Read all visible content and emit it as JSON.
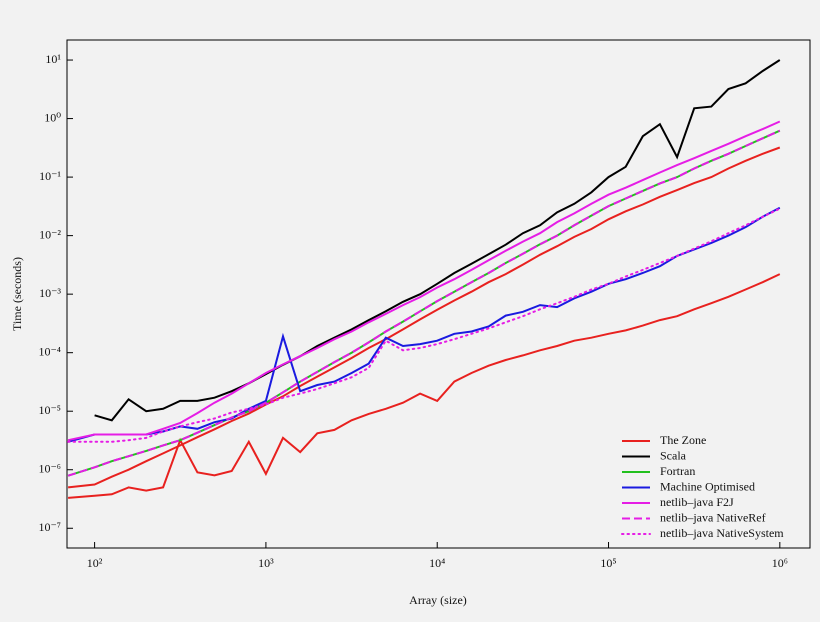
{
  "chart_data": {
    "type": "line",
    "xlabel": "Array (size)",
    "ylabel": "Time (seconds)",
    "x_scale": "log",
    "y_scale": "log",
    "xlim": [
      69,
      1500000
    ],
    "ylim": [
      4.6e-08,
      22
    ],
    "xticks": [
      {
        "value": 100,
        "label": "10²"
      },
      {
        "value": 1000,
        "label": "10³"
      },
      {
        "value": 10000,
        "label": "10⁴"
      },
      {
        "value": 100000,
        "label": "10⁵"
      },
      {
        "value": 1000000,
        "label": "10⁶"
      }
    ],
    "yticks": [
      {
        "value": 1e-07,
        "label": "10⁻⁷"
      },
      {
        "value": 1e-06,
        "label": "10⁻⁶"
      },
      {
        "value": 1e-05,
        "label": "10⁻⁵"
      },
      {
        "value": 0.0001,
        "label": "10⁻⁴"
      },
      {
        "value": 0.001,
        "label": "10⁻³"
      },
      {
        "value": 0.01,
        "label": "10⁻²"
      },
      {
        "value": 0.1,
        "label": "10⁻¹"
      },
      {
        "value": 1,
        "label": "10⁰"
      },
      {
        "value": 10,
        "label": "10¹"
      }
    ],
    "legend": "lower right",
    "x": [
      70,
      100,
      126,
      158,
      200,
      251,
      316,
      398,
      501,
      631,
      794,
      1000,
      1259,
      1585,
      1995,
      2512,
      3162,
      3981,
      5012,
      6310,
      7943,
      10000,
      12589,
      15849,
      19953,
      25119,
      31623,
      39811,
      50119,
      63096,
      79433,
      100000,
      125893,
      158489,
      199526,
      251189,
      316228,
      398107,
      501187,
      630957,
      794328,
      1000000
    ],
    "series": [
      {
        "name": "The Zone",
        "color": "#e8211f",
        "line_style": "solid",
        "values": [
          5e-07,
          5.6e-07,
          7.6e-07,
          1e-06,
          1.4e-06,
          1.9e-06,
          2.6e-06,
          3.6e-06,
          4.9e-06,
          6.8e-06,
          9.1e-06,
          1.3e-05,
          1.8e-05,
          2.7e-05,
          3.9e-05,
          5.6e-05,
          8.1e-05,
          0.00012,
          0.00017,
          0.00025,
          0.00037,
          0.00054,
          0.00078,
          0.0011,
          0.0016,
          0.0022,
          0.0032,
          0.0047,
          0.0066,
          0.0095,
          0.013,
          0.019,
          0.026,
          0.034,
          0.046,
          0.06,
          0.079,
          0.1,
          0.14,
          0.19,
          0.25,
          0.32
        ]
      },
      {
        "color": "#e8211f",
        "line_style": "solid",
        "values": [
          3.3e-07,
          3.6e-07,
          3.8e-07,
          5e-07,
          4.4e-07,
          5e-07,
          3.2e-06,
          9e-07,
          8e-07,
          9.5e-07,
          3e-06,
          8.5e-07,
          3.5e-06,
          2e-06,
          4.2e-06,
          4.8e-06,
          7e-06,
          9e-06,
          1.1e-05,
          1.4e-05,
          2e-05,
          1.5e-05,
          3.2e-05,
          4.5e-05,
          6e-05,
          7.5e-05,
          9e-05,
          0.00011,
          0.00013,
          0.00016,
          0.00018,
          0.00021,
          0.00024,
          0.00029,
          0.00036,
          0.00042,
          0.00055,
          0.0007,
          0.0009,
          0.0012,
          0.0016,
          0.0022
        ]
      },
      {
        "name": "Scala",
        "color": "#000000",
        "line_style": "solid",
        "values": [
          null,
          8.5e-06,
          7e-06,
          1.6e-05,
          1e-05,
          1.1e-05,
          1.5e-05,
          1.5e-05,
          1.7e-05,
          2.2e-05,
          3e-05,
          4.3e-05,
          6.2e-05,
          8.7e-05,
          0.00013,
          0.00018,
          0.00025,
          0.00036,
          0.00051,
          0.00074,
          0.001,
          0.0015,
          0.0023,
          0.0033,
          0.0048,
          0.007,
          0.011,
          0.015,
          0.025,
          0.035,
          0.055,
          0.1,
          0.15,
          0.5,
          0.8,
          0.22,
          1.5,
          1.6,
          3.2,
          4.0,
          6.5,
          10
        ]
      },
      {
        "name": "Fortran",
        "color": "#22c01e",
        "line_style": "solid",
        "values": [
          7.9e-07,
          1.1e-06,
          1.4e-06,
          1.7e-06,
          2.1e-06,
          2.6e-06,
          3.2e-06,
          4.3e-06,
          5.8e-06,
          7.8e-06,
          1e-05,
          1.4e-05,
          2.1e-05,
          3.2e-05,
          4.7e-05,
          6.9e-05,
          0.0001,
          0.00015,
          0.00023,
          0.00034,
          0.00051,
          0.00076,
          0.0011,
          0.0016,
          0.0023,
          0.0034,
          0.0049,
          0.0071,
          0.01,
          0.015,
          0.022,
          0.032,
          0.043,
          0.058,
          0.078,
          0.1,
          0.14,
          0.19,
          0.25,
          0.34,
          0.46,
          0.62
        ]
      },
      {
        "name": "Machine Optimised",
        "color": "#1a1ae0",
        "line_style": "solid",
        "values": [
          3e-06,
          4e-06,
          4e-06,
          4e-06,
          4e-06,
          4.5e-06,
          5.5e-06,
          5e-06,
          6.5e-06,
          7.5e-06,
          1.1e-05,
          1.5e-05,
          0.00019,
          2.2e-05,
          2.8e-05,
          3.2e-05,
          4.5e-05,
          6.5e-05,
          0.00018,
          0.00013,
          0.00014,
          0.00016,
          0.00021,
          0.00023,
          0.00028,
          0.00043,
          0.0005,
          0.00065,
          0.0006,
          0.00085,
          0.0011,
          0.0015,
          0.0018,
          0.0023,
          0.003,
          0.0045,
          0.0058,
          0.0075,
          0.01,
          0.014,
          0.021,
          0.03
        ]
      },
      {
        "name": "netlib–java F2J",
        "color": "#e51de5",
        "line_style": "solid",
        "values": [
          3.2e-06,
          4e-06,
          4e-06,
          4e-06,
          4e-06,
          5e-06,
          6.3e-06,
          9.3e-06,
          1.4e-05,
          2e-05,
          3e-05,
          4.5e-05,
          6.3e-05,
          8.7e-05,
          0.00012,
          0.00017,
          0.00023,
          0.00033,
          0.00046,
          0.00065,
          0.00089,
          0.0013,
          0.0018,
          0.0026,
          0.0038,
          0.0055,
          0.0079,
          0.011,
          0.017,
          0.024,
          0.035,
          0.05,
          0.066,
          0.089,
          0.12,
          0.16,
          0.21,
          0.28,
          0.37,
          0.5,
          0.66,
          0.89
        ]
      },
      {
        "name": "netlib–java NativeRef",
        "color": "#e51de5",
        "line_style": "dashed",
        "values": [
          7.9e-07,
          1.1e-06,
          1.4e-06,
          1.7e-06,
          2.1e-06,
          2.6e-06,
          3.2e-06,
          4.3e-06,
          5.8e-06,
          7.8e-06,
          1e-05,
          1.4e-05,
          2.1e-05,
          3.2e-05,
          4.7e-05,
          6.9e-05,
          0.0001,
          0.00015,
          0.00023,
          0.00034,
          0.00051,
          0.00076,
          0.0011,
          0.0016,
          0.0023,
          0.0034,
          0.0049,
          0.0071,
          0.01,
          0.015,
          0.022,
          0.032,
          0.043,
          0.058,
          0.078,
          0.1,
          0.14,
          0.19,
          0.25,
          0.34,
          0.46,
          0.62
        ]
      },
      {
        "name": "netlib–java NativeSystem",
        "color": "#e51de5",
        "line_style": "dotted",
        "values": [
          3e-06,
          3e-06,
          3e-06,
          3.2e-06,
          3.5e-06,
          4.5e-06,
          5.5e-06,
          6.5e-06,
          7.5e-06,
          9.5e-06,
          1.1e-05,
          1.3e-05,
          1.7e-05,
          2e-05,
          2.4e-05,
          3e-05,
          3.8e-05,
          5.5e-05,
          0.00016,
          0.00011,
          0.00012,
          0.00014,
          0.00017,
          0.00021,
          0.00026,
          0.00033,
          0.00042,
          0.00055,
          0.0007,
          0.0009,
          0.0012,
          0.0015,
          0.002,
          0.0026,
          0.0034,
          0.0045,
          0.006,
          0.008,
          0.011,
          0.015,
          0.021,
          0.029
        ]
      }
    ]
  }
}
